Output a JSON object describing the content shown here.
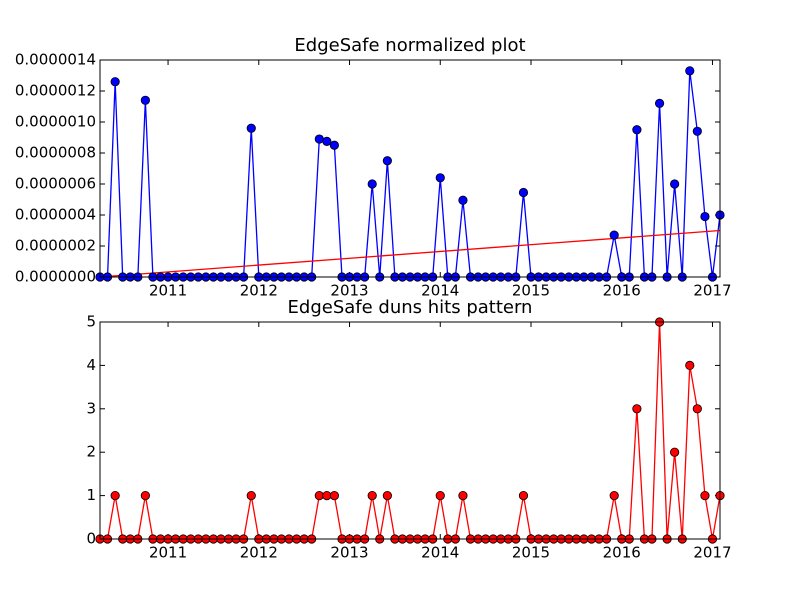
{
  "chart_data": [
    {
      "type": "line",
      "title": "EdgeSafe normalized plot",
      "x": [
        2010.25,
        2010.333,
        2010.417,
        2010.5,
        2010.583,
        2010.667,
        2010.75,
        2010.833,
        2010.917,
        2011,
        2011.083,
        2011.167,
        2011.25,
        2011.333,
        2011.417,
        2011.5,
        2011.583,
        2011.667,
        2011.75,
        2011.833,
        2011.917,
        2012,
        2012.083,
        2012.167,
        2012.25,
        2012.333,
        2012.417,
        2012.5,
        2012.583,
        2012.667,
        2012.75,
        2012.833,
        2012.917,
        2013,
        2013.083,
        2013.167,
        2013.25,
        2013.333,
        2013.417,
        2013.5,
        2013.583,
        2013.667,
        2013.75,
        2013.833,
        2013.917,
        2014,
        2014.083,
        2014.167,
        2014.25,
        2014.333,
        2014.417,
        2014.5,
        2014.583,
        2014.667,
        2014.75,
        2014.833,
        2014.917,
        2015,
        2015.083,
        2015.167,
        2015.25,
        2015.333,
        2015.417,
        2015.5,
        2015.583,
        2015.667,
        2015.75,
        2015.833,
        2015.917,
        2016,
        2016.083,
        2016.167,
        2016.25,
        2016.333,
        2016.417,
        2016.5,
        2016.583,
        2016.667,
        2016.75,
        2016.833,
        2016.917,
        2017,
        2017.083
      ],
      "series": [
        {
          "color": "#0000ff",
          "values": [
            0,
            0,
            1.26e-06,
            0,
            0,
            0,
            1.14e-06,
            0,
            0,
            0,
            0,
            0,
            0,
            0,
            0,
            0,
            0,
            0,
            0,
            0,
            9.6e-07,
            0,
            0,
            0,
            0,
            0,
            0,
            0,
            0,
            8.9e-07,
            8.75e-07,
            8.5e-07,
            0,
            0,
            0,
            0,
            6e-07,
            0,
            7.5e-07,
            0,
            0,
            0,
            0,
            0,
            0,
            6.4e-07,
            0,
            0,
            4.95e-07,
            0,
            0,
            0,
            0,
            0,
            0,
            0,
            5.45e-07,
            0,
            0,
            0,
            0,
            0,
            0,
            0,
            0,
            0,
            0,
            0,
            2.7e-07,
            0,
            0,
            9.5e-07,
            0,
            0,
            1.12e-06,
            0,
            6e-07,
            0,
            1.33e-06,
            9.4e-07,
            3.9e-07,
            0,
            4e-07
          ]
        }
      ],
      "trend": {
        "color": "#ff0000",
        "x": [
          2010.25,
          2017.083
        ],
        "values": [
          0,
          3e-07
        ]
      },
      "xlim": [
        2010.25,
        2017.083
      ],
      "xticks": [
        2011,
        2012,
        2013,
        2014,
        2015,
        2016,
        2017
      ],
      "ylim": [
        0,
        1.4e-06
      ],
      "yticks": [
        {
          "value": 0,
          "label": "0.0000000"
        },
        {
          "value": 2e-07,
          "label": "0.0000002"
        },
        {
          "value": 4e-07,
          "label": "0.0000004"
        },
        {
          "value": 6e-07,
          "label": "0.0000006"
        },
        {
          "value": 8e-07,
          "label": "0.0000008"
        },
        {
          "value": 1e-06,
          "label": "0.0000010"
        },
        {
          "value": 1.2e-06,
          "label": "0.0000012"
        },
        {
          "value": 1.4e-06,
          "label": "0.0000014"
        }
      ]
    },
    {
      "type": "line",
      "title": "EdgeSafe duns hits pattern",
      "x": [
        2010.25,
        2010.333,
        2010.417,
        2010.5,
        2010.583,
        2010.667,
        2010.75,
        2010.833,
        2010.917,
        2011,
        2011.083,
        2011.167,
        2011.25,
        2011.333,
        2011.417,
        2011.5,
        2011.583,
        2011.667,
        2011.75,
        2011.833,
        2011.917,
        2012,
        2012.083,
        2012.167,
        2012.25,
        2012.333,
        2012.417,
        2012.5,
        2012.583,
        2012.667,
        2012.75,
        2012.833,
        2012.917,
        2013,
        2013.083,
        2013.167,
        2013.25,
        2013.333,
        2013.417,
        2013.5,
        2013.583,
        2013.667,
        2013.75,
        2013.833,
        2013.917,
        2014,
        2014.083,
        2014.167,
        2014.25,
        2014.333,
        2014.417,
        2014.5,
        2014.583,
        2014.667,
        2014.75,
        2014.833,
        2014.917,
        2015,
        2015.083,
        2015.167,
        2015.25,
        2015.333,
        2015.417,
        2015.5,
        2015.583,
        2015.667,
        2015.75,
        2015.833,
        2015.917,
        2016,
        2016.083,
        2016.167,
        2016.25,
        2016.333,
        2016.417,
        2016.5,
        2016.583,
        2016.667,
        2016.75,
        2016.833,
        2016.917,
        2017,
        2017.083
      ],
      "series": [
        {
          "color": "#ff0000",
          "values": [
            0,
            0,
            1,
            0,
            0,
            0,
            1,
            0,
            0,
            0,
            0,
            0,
            0,
            0,
            0,
            0,
            0,
            0,
            0,
            0,
            1,
            0,
            0,
            0,
            0,
            0,
            0,
            0,
            0,
            1,
            1,
            1,
            0,
            0,
            0,
            0,
            1,
            0,
            1,
            0,
            0,
            0,
            0,
            0,
            0,
            1,
            0,
            0,
            1,
            0,
            0,
            0,
            0,
            0,
            0,
            0,
            1,
            0,
            0,
            0,
            0,
            0,
            0,
            0,
            0,
            0,
            0,
            0,
            1,
            0,
            0,
            3,
            0,
            0,
            5,
            0,
            2,
            0,
            4,
            3,
            1,
            0,
            1
          ]
        }
      ],
      "xlim": [
        2010.25,
        2017.083
      ],
      "xticks": [
        2011,
        2012,
        2013,
        2014,
        2015,
        2016,
        2017
      ],
      "ylim": [
        0,
        5
      ],
      "yticks": [
        0,
        1,
        2,
        3,
        4,
        5
      ]
    }
  ]
}
